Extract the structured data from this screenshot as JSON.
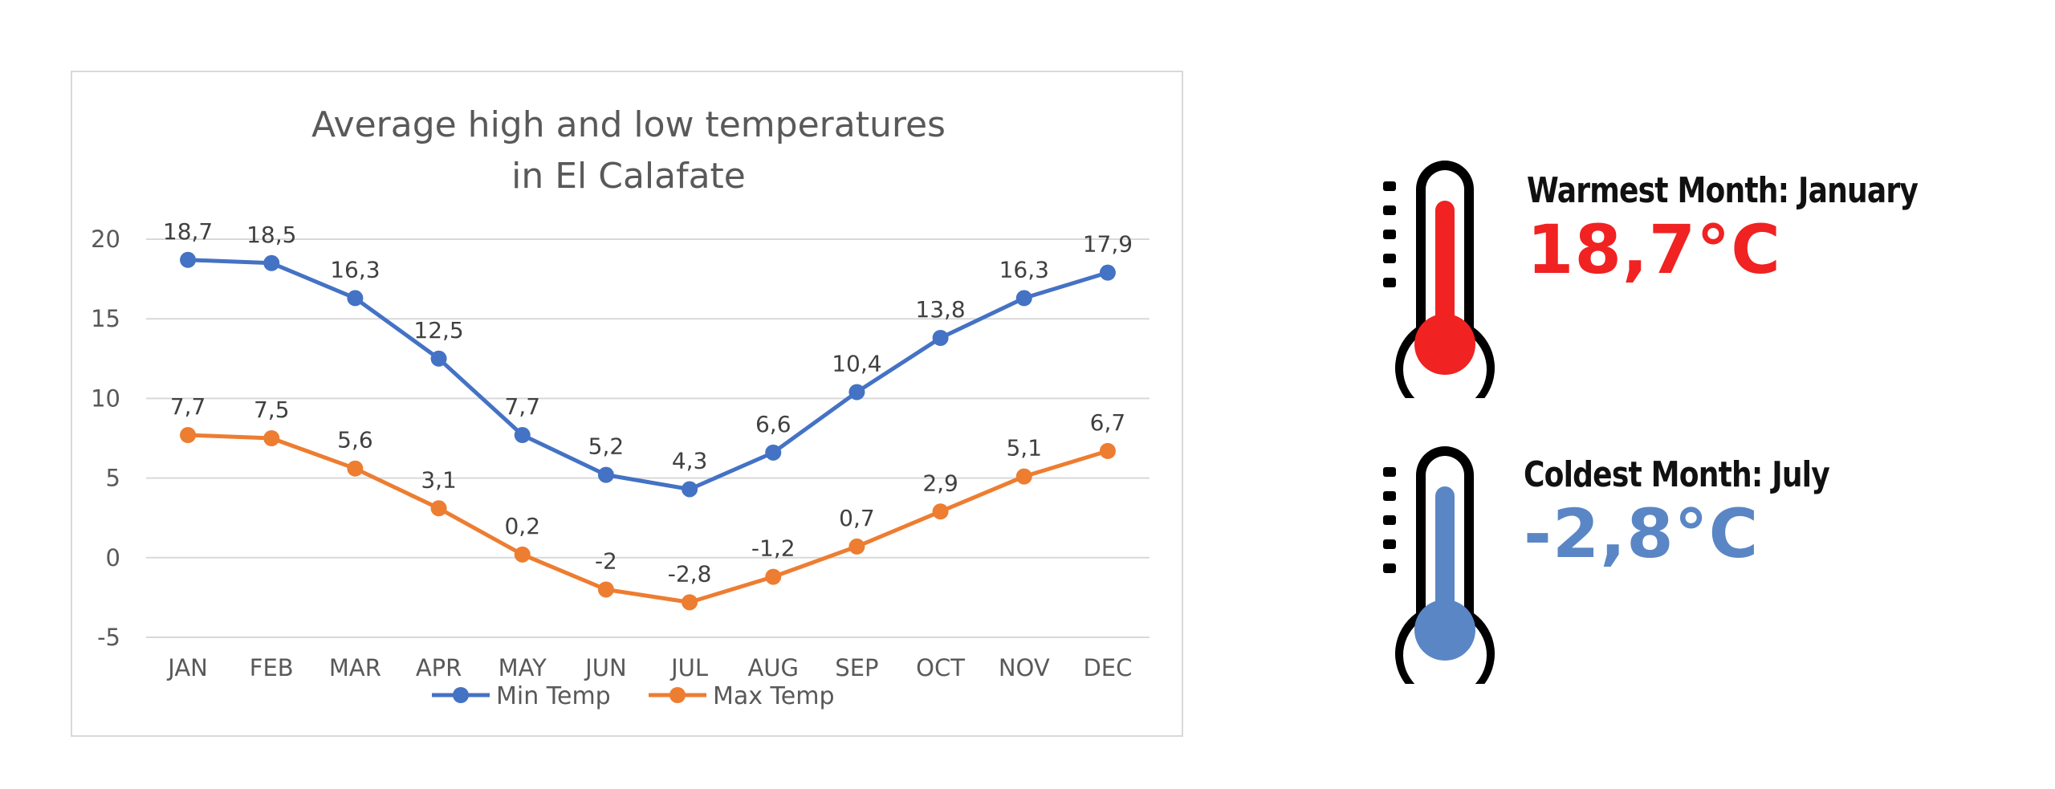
{
  "chart_data": {
    "type": "line",
    "title_lines": [
      "Average high and low temperatures",
      "in El Calafate"
    ],
    "categories": [
      "JAN",
      "FEB",
      "MAR",
      "APR",
      "MAY",
      "JUN",
      "JUL",
      "AUG",
      "SEP",
      "OCT",
      "NOV",
      "DEC"
    ],
    "y_ticks": [
      "20",
      "15",
      "10",
      "5",
      "0",
      "-5"
    ],
    "ylim": [
      -5,
      20
    ],
    "grid": true,
    "legend_position": "bottom",
    "series": [
      {
        "name": "Min Temp",
        "color": "#4472c4",
        "values": [
          18.7,
          18.5,
          16.3,
          12.5,
          7.7,
          5.2,
          4.3,
          6.6,
          10.4,
          13.8,
          16.3,
          17.9
        ],
        "labels": [
          "18,7",
          "18,5",
          "16,3",
          "12,5",
          "7,7",
          "5,2",
          "4,3",
          "6,6",
          "10,4",
          "13,8",
          "16,3",
          "17,9"
        ]
      },
      {
        "name": "Max Temp",
        "color": "#ed7d31",
        "values": [
          7.7,
          7.5,
          5.6,
          3.1,
          0.2,
          -2,
          -2.8,
          -1.2,
          0.7,
          2.9,
          5.1,
          6.7
        ],
        "labels": [
          "7,7",
          "7,5",
          "5,6",
          "3,1",
          "0,2",
          "-2",
          "-2,8",
          "-1,2",
          "0,7",
          "2,9",
          "5,1",
          "6,7"
        ]
      }
    ]
  },
  "callouts": {
    "warmest": {
      "heading": "Warmest Month: January",
      "value": "18,7°C",
      "color": "#f02222",
      "icon": "thermometer-hot-icon"
    },
    "coldest": {
      "heading": "Coldest Month: July",
      "value": "-2,8°C",
      "color": "#5b86c5",
      "icon": "thermometer-cold-icon"
    }
  }
}
